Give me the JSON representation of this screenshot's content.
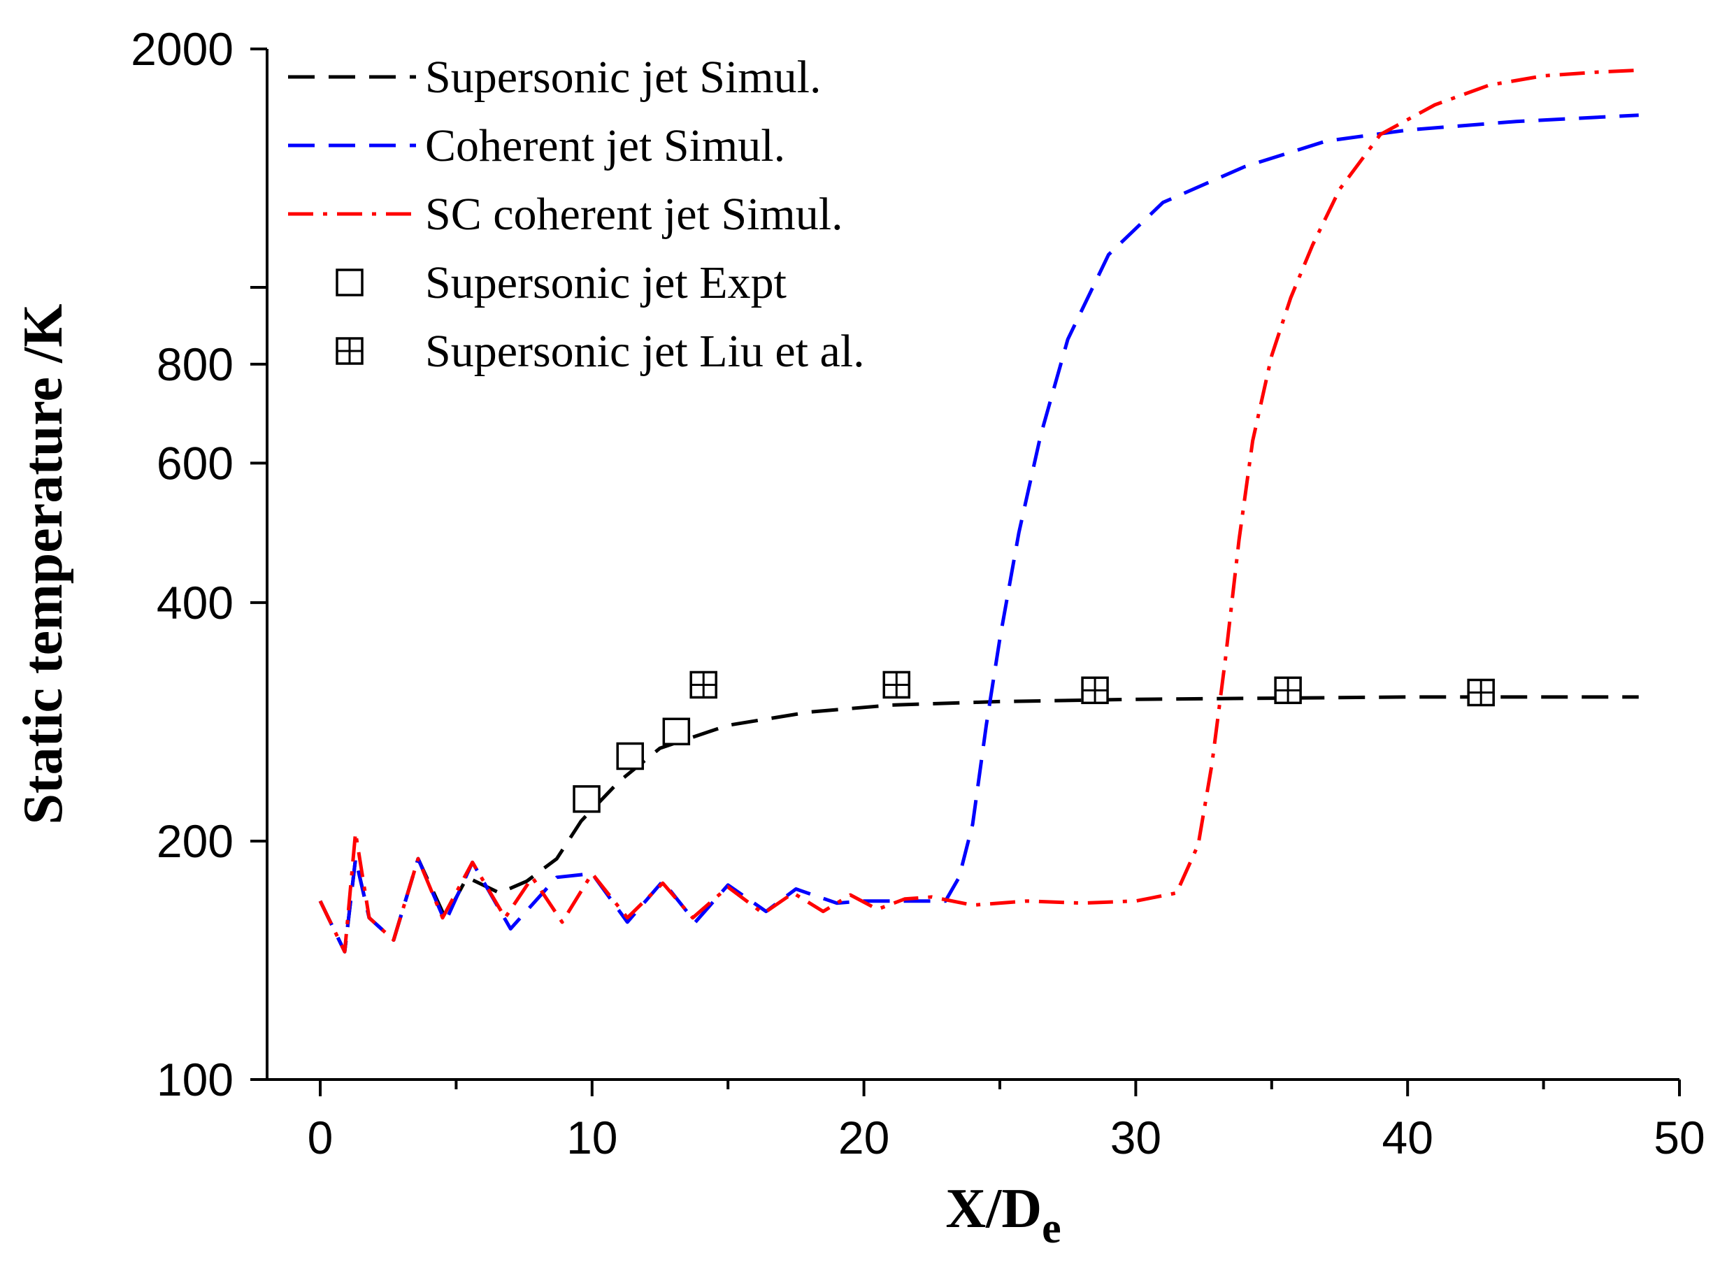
{
  "chart_data": {
    "type": "line",
    "xlabel_main": "X/D",
    "xlabel_sub": "e",
    "ylabel": "Static temperature /K",
    "xlim": [
      -2,
      50
    ],
    "ylim": [
      100,
      2000
    ],
    "yscale": "log",
    "xticks": [
      "0",
      "10",
      "20",
      "30",
      "40",
      "50"
    ],
    "yticks": [
      "100",
      "200",
      "400",
      "600",
      "800",
      "2000"
    ],
    "legend": [
      {
        "label": "Supersonic jet  Simul.",
        "style": "dash",
        "color": "#000000"
      },
      {
        "label": "Coherent jet  Simul.",
        "style": "dash",
        "color": "#0000ff"
      },
      {
        "label": "SC coherent jet  Simul.",
        "style": "dashdot",
        "color": "#ff0000"
      },
      {
        "label": "Supersonic jet  Expt",
        "style": "square",
        "color": "#000000"
      },
      {
        "label": "Supersonic jet  Liu et al.",
        "style": "square-plus",
        "color": "#000000"
      }
    ],
    "series": [
      {
        "name": "Supersonic jet  Simul.",
        "color": "#000000",
        "dash": "dash",
        "x": [
          0,
          0.9,
          1.3,
          1.8,
          2.7,
          3.6,
          4.6,
          5.4,
          6.6,
          7.6,
          8.7,
          9.6,
          11,
          12.5,
          15,
          18,
          21,
          25,
          30,
          35,
          40,
          45,
          48.5
        ],
        "y": [
          168,
          145,
          190,
          160,
          150,
          190,
          160,
          180,
          172,
          178,
          190,
          212,
          238,
          262,
          280,
          291,
          297,
          300,
          302,
          303,
          304,
          304,
          304
        ]
      },
      {
        "name": "Coherent jet  Simul.",
        "color": "#0000ff",
        "dash": "dash",
        "x": [
          0,
          0.9,
          1.3,
          1.8,
          2.7,
          3.6,
          4.6,
          5.6,
          7,
          8.7,
          10,
          11.3,
          12.6,
          13.8,
          15,
          16.4,
          17.5,
          19,
          20,
          21.5,
          23,
          23.5,
          24,
          24.5,
          25,
          25.7,
          26.5,
          27.5,
          29,
          31,
          34,
          37,
          40,
          44,
          48.5
        ],
        "y": [
          168,
          145,
          190,
          160,
          150,
          190,
          158,
          188,
          155,
          180,
          182,
          158,
          178,
          158,
          176,
          163,
          174,
          167,
          168,
          168,
          168,
          180,
          210,
          280,
          360,
          490,
          650,
          860,
          1100,
          1280,
          1420,
          1530,
          1580,
          1620,
          1650
        ]
      },
      {
        "name": "SC coherent jet  Simul.",
        "color": "#ff0000",
        "dash": "dashdot",
        "x": [
          0,
          0.9,
          1.3,
          1.8,
          2.7,
          3.6,
          4.5,
          5.6,
          6.8,
          7.8,
          8.9,
          10,
          11.3,
          12.6,
          13.7,
          15,
          16.3,
          17.4,
          18.5,
          19.5,
          20.5,
          21.5,
          22.5,
          24,
          26,
          28,
          30,
          31.5,
          32.3,
          32.8,
          33.3,
          33.8,
          34.3,
          35,
          35.7,
          36.5,
          37.5,
          39,
          41,
          43,
          45,
          47,
          48.5
        ],
        "y": [
          168,
          145,
          205,
          160,
          150,
          190,
          160,
          188,
          160,
          180,
          158,
          182,
          160,
          177,
          160,
          175,
          162,
          172,
          163,
          171,
          164,
          169,
          170,
          166,
          168,
          167,
          168,
          172,
          198,
          250,
          340,
          480,
          640,
          820,
          970,
          1130,
          1330,
          1560,
          1700,
          1800,
          1850,
          1870,
          1880
        ]
      }
    ],
    "markers": [
      {
        "name": "Supersonic jet  Expt",
        "symbol": "square",
        "x": [
          9.8,
          11.4,
          13.1
        ],
        "y": [
          226,
          256,
          275
        ]
      },
      {
        "name": "Supersonic jet  Liu et al.",
        "symbol": "square-plus",
        "x": [
          14.1,
          21.2,
          28.5,
          35.6,
          42.7
        ],
        "y": [
          315,
          315,
          310,
          310,
          308
        ]
      }
    ]
  }
}
